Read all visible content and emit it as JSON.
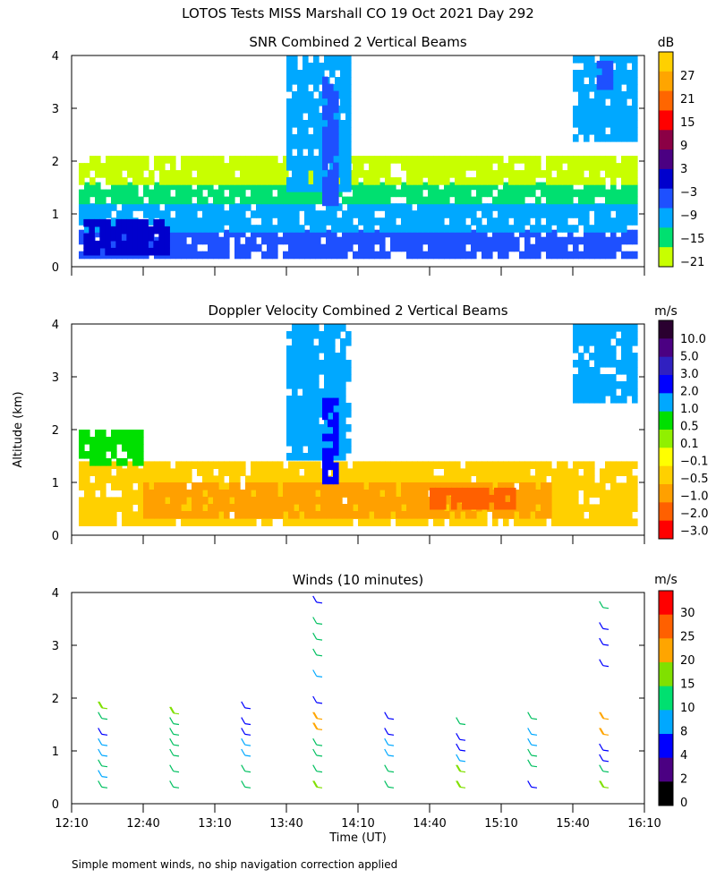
{
  "figure": {
    "title": "LOTOS Tests MISS Marshall CO  19 Oct 2021 Day 292",
    "ylabel": "Altitude (km)",
    "xlabel": "Time (UT)",
    "footnote": "Simple moment winds, no ship navigation correction applied"
  },
  "chart_data": [
    {
      "type": "heatmap",
      "title": "SNR Combined 2 Vertical Beams",
      "ylabel": "Altitude (km)",
      "y_ticks": [
        "0",
        "1",
        "2",
        "3",
        "4"
      ],
      "ylim": [
        0,
        4
      ],
      "xlim": [
        "12:10",
        "16:10"
      ],
      "colorbar": {
        "unit": "dB",
        "labels": [
          "27",
          "21",
          "15",
          "9",
          "3",
          "−3",
          "−9",
          "−15",
          "−21"
        ],
        "colors": [
          "#ffd000",
          "#ffa500",
          "#ff6600",
          "#ff0000",
          "#8b0045",
          "#4b0082",
          "#0000cd",
          "#1e50ff",
          "#00a8ff",
          "#00e070",
          "#c8ff00"
        ]
      },
      "regions": [
        {
          "t": [
            "12:13",
            "16:07"
          ],
          "alt": [
            0.25,
            0.7
          ],
          "snr": -3
        },
        {
          "t": [
            "12:13",
            "16:07"
          ],
          "alt": [
            0.7,
            1.2
          ],
          "snr": -9
        },
        {
          "t": [
            "12:13",
            "16:07"
          ],
          "alt": [
            1.2,
            1.6
          ],
          "snr": -15
        },
        {
          "t": [
            "12:13",
            "16:07"
          ],
          "alt": [
            1.6,
            2.1
          ],
          "snr": -21
        },
        {
          "t": [
            "12:15",
            "12:50"
          ],
          "alt": [
            0.3,
            0.9
          ],
          "snr": 3
        },
        {
          "t": [
            "13:40",
            "14:05"
          ],
          "alt": [
            1.5,
            4.0
          ],
          "snr": -9
        },
        {
          "t": [
            "13:55",
            "14:00"
          ],
          "alt": [
            1.2,
            3.6
          ],
          "snr": -3
        },
        {
          "t": [
            "15:40",
            "16:05"
          ],
          "alt": [
            2.4,
            4.0
          ],
          "snr": -9
        },
        {
          "t": [
            "15:50",
            "15:55"
          ],
          "alt": [
            3.4,
            3.9
          ],
          "snr": -3
        }
      ]
    },
    {
      "type": "heatmap",
      "title": "Doppler Velocity Combined 2 Vertical Beams",
      "ylabel": "Altitude (km)",
      "y_ticks": [
        "0",
        "1",
        "2",
        "3",
        "4"
      ],
      "ylim": [
        0,
        4
      ],
      "xlim": [
        "12:10",
        "16:10"
      ],
      "colorbar": {
        "unit": "m/s",
        "labels": [
          "10.0",
          "5.0",
          "3.0",
          "2.0",
          "1.0",
          "0.5",
          "0.1",
          "−0.1",
          "−0.5",
          "−1.0",
          "−2.0",
          "−3.0"
        ],
        "colors": [
          "#2a0030",
          "#4b0082",
          "#3020c0",
          "#0000ff",
          "#00a8ff",
          "#00e000",
          "#90f000",
          "#ffff00",
          "#ffd000",
          "#ffa000",
          "#ff6000",
          "#ff0000"
        ]
      },
      "regions": [
        {
          "t": [
            "12:13",
            "16:07"
          ],
          "alt": [
            0.25,
            1.4
          ],
          "vel": -0.5
        },
        {
          "t": [
            "12:40",
            "15:30"
          ],
          "alt": [
            0.4,
            1.0
          ],
          "vel": -1.0
        },
        {
          "t": [
            "14:40",
            "15:15"
          ],
          "alt": [
            0.5,
            0.9
          ],
          "vel": -2.0
        },
        {
          "t": [
            "13:40",
            "14:05"
          ],
          "alt": [
            1.5,
            4.0
          ],
          "vel": 1.0
        },
        {
          "t": [
            "13:55",
            "14:00"
          ],
          "alt": [
            1.0,
            2.6
          ],
          "vel": 2.0
        },
        {
          "t": [
            "15:40",
            "16:05"
          ],
          "alt": [
            2.6,
            4.0
          ],
          "vel": 1.0
        },
        {
          "t": [
            "12:13",
            "12:40"
          ],
          "alt": [
            1.4,
            2.0
          ],
          "vel": 0.5
        }
      ]
    },
    {
      "type": "scatter",
      "title": "Winds (10 minutes)",
      "ylabel": "Altitude (km)",
      "xlabel": "Time (UT)",
      "x_ticks": [
        "12:10",
        "12:40",
        "13:10",
        "13:40",
        "14:10",
        "14:40",
        "15:10",
        "15:40",
        "16:10"
      ],
      "y_ticks": [
        "0",
        "1",
        "2",
        "3",
        "4"
      ],
      "ylim": [
        0,
        4
      ],
      "xlim": [
        "12:10",
        "16:10"
      ],
      "colorbar": {
        "unit": "m/s",
        "labels": [
          "30",
          "25",
          "20",
          "15",
          "10",
          "8",
          "4",
          "2",
          "0"
        ],
        "colors": [
          "#ff0000",
          "#ff6000",
          "#ffa500",
          "#80e000",
          "#00e070",
          "#00a8ff",
          "#0000ff",
          "#4b0082",
          "#000000"
        ]
      },
      "profiles": [
        {
          "time": "12:25",
          "alt": [
            0.3,
            0.5,
            0.7,
            0.9,
            1.1,
            1.3,
            1.6,
            1.8
          ],
          "speed": [
            12,
            8,
            10,
            9,
            8,
            7,
            10,
            15
          ]
        },
        {
          "time": "12:55",
          "alt": [
            0.3,
            0.6,
            0.9,
            1.1,
            1.3,
            1.5,
            1.7
          ],
          "speed": [
            14,
            11,
            10,
            11,
            12,
            13,
            15
          ]
        },
        {
          "time": "13:25",
          "alt": [
            0.3,
            0.6,
            0.9,
            1.1,
            1.3,
            1.5,
            1.8
          ],
          "speed": [
            14,
            12,
            9,
            8,
            7,
            6,
            5
          ]
        },
        {
          "time": "13:55",
          "alt": [
            0.3,
            0.6,
            0.9,
            1.1,
            1.4,
            1.6,
            1.9,
            2.4,
            2.8,
            3.1,
            3.4,
            3.8
          ],
          "speed": [
            15,
            11,
            10,
            10,
            22,
            24,
            5,
            8,
            10,
            11,
            13,
            6
          ]
        },
        {
          "time": "14:25",
          "alt": [
            0.3,
            0.6,
            0.9,
            1.1,
            1.3,
            1.6
          ],
          "speed": [
            14,
            10,
            9,
            8,
            7,
            6
          ]
        },
        {
          "time": "14:55",
          "alt": [
            0.3,
            0.6,
            0.8,
            1.0,
            1.2,
            1.5
          ],
          "speed": [
            15,
            15,
            9,
            7,
            6,
            12
          ]
        },
        {
          "time": "15:25",
          "alt": [
            0.3,
            0.7,
            0.9,
            1.1,
            1.3,
            1.6
          ],
          "speed": [
            5,
            12,
            10,
            9,
            9,
            13
          ]
        },
        {
          "time": "15:55",
          "alt": [
            0.3,
            0.6,
            0.8,
            1.0,
            1.3,
            1.6,
            2.6,
            3.0,
            3.3,
            3.7
          ],
          "speed": [
            15,
            14,
            4,
            5,
            20,
            22,
            5,
            6,
            7,
            10
          ]
        }
      ]
    }
  ]
}
